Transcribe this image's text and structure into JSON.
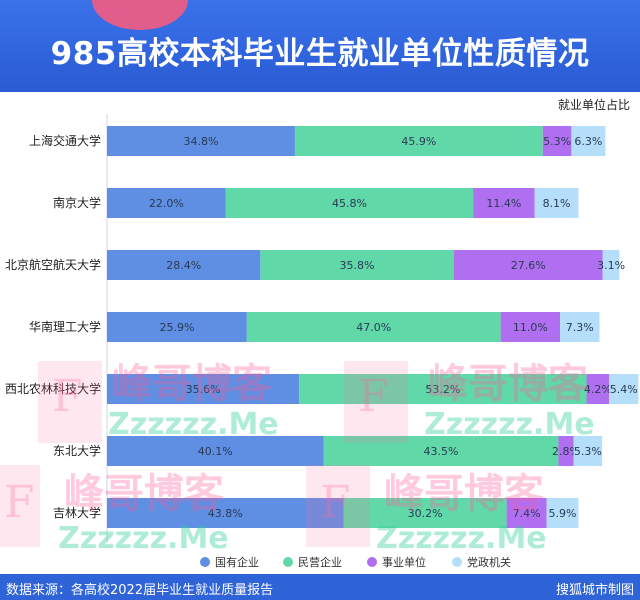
{
  "header": {
    "title": "985高校本科毕业生就业单位性质情况"
  },
  "chart_unit_label": "就业单位占比",
  "chart_data": {
    "type": "bar",
    "orientation": "horizontal",
    "stacked": true,
    "unit": "%",
    "categories": [
      "上海交通大学",
      "南京大学",
      "北京航空航天大学",
      "华南理工大学",
      "西北农林科技大学",
      "东北大学",
      "吉林大学"
    ],
    "series": [
      {
        "name": "国有企业",
        "color": "#5f8fe2",
        "values": [
          34.8,
          22.0,
          28.4,
          25.9,
          35.6,
          40.1,
          43.8
        ],
        "labels": [
          "34.8%",
          "22.0%",
          "28.4%",
          "25.9%",
          "35.6%",
          "40.1%",
          "43.8%"
        ]
      },
      {
        "name": "民营企业",
        "color": "#61d8a8",
        "values": [
          45.9,
          45.8,
          35.8,
          47.0,
          53.2,
          43.5,
          30.2
        ],
        "labels": [
          "45.9%",
          "45.8%",
          "35.8%",
          "47.0%",
          "53.2%",
          "43.5%",
          "30.2%"
        ]
      },
      {
        "name": "事业单位",
        "color": "#b06ff0",
        "values": [
          5.3,
          11.4,
          27.6,
          11.0,
          4.2,
          2.8,
          7.4
        ],
        "labels": [
          "5.3%",
          "11.4%",
          "27.6%",
          "11.0%",
          "4.2%",
          "2.8%",
          "7.4%"
        ]
      },
      {
        "name": "党政机关",
        "color": "#b4defa",
        "values": [
          6.3,
          8.1,
          3.1,
          7.3,
          5.4,
          5.3,
          5.9
        ],
        "labels": [
          "6.3%",
          "8.1%",
          "3.1%",
          "7.3%",
          "5.4%",
          "5.3%",
          "5.9%"
        ]
      }
    ],
    "legend_position": "bottom",
    "grid": false
  },
  "watermark": {
    "text": "峰哥博客",
    "domain": "Zzzzzz.Me",
    "letter": "F"
  },
  "footer": {
    "source": "数据来源：各高校2022届毕业生就业质量报告",
    "credit": "搜狐城市制图"
  }
}
